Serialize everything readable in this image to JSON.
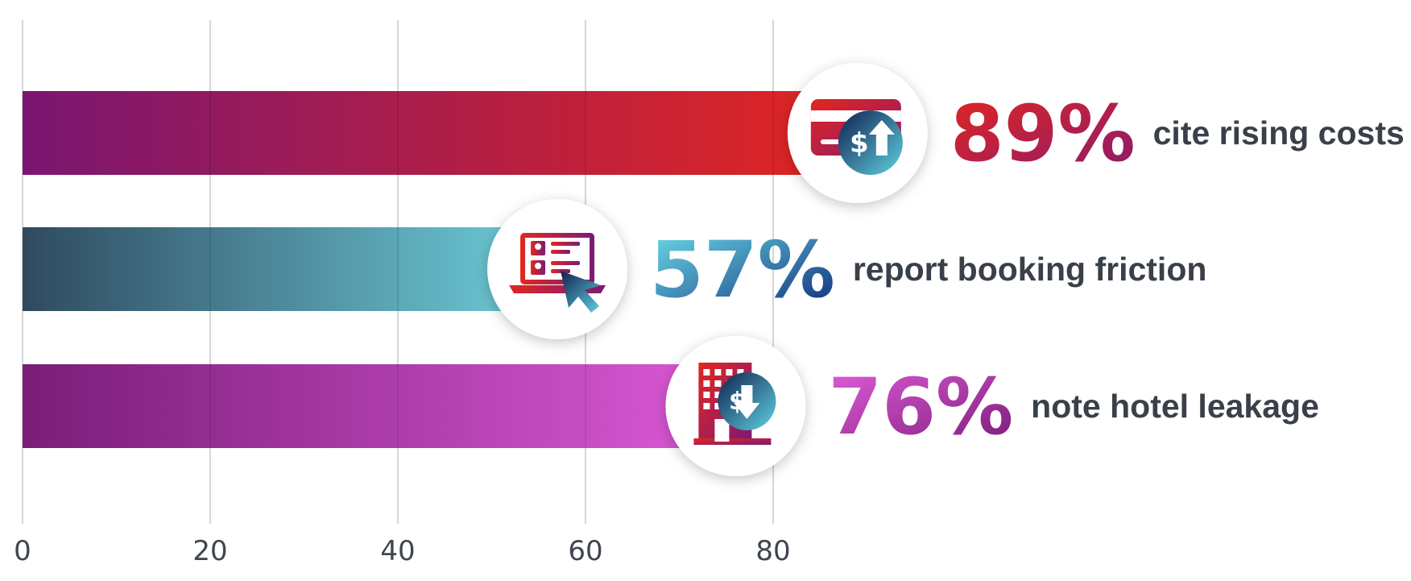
{
  "chart_data": {
    "type": "bar",
    "orientation": "horizontal",
    "xlim": [
      0,
      100
    ],
    "x_ticks": [
      "0",
      "20",
      "40",
      "60",
      "80"
    ],
    "grid": true,
    "categories": [
      "cite rising costs",
      "report booking friction",
      "note hotel leakage"
    ],
    "values": [
      89,
      57,
      76
    ],
    "value_labels": [
      "89%",
      "57%",
      "76%"
    ]
  },
  "bars": [
    {
      "value": 89,
      "label": "89%",
      "caption": "cite rising costs",
      "icon": "credit-card-price-up-icon",
      "gradient": [
        "#7a1672",
        "#e3261f"
      ],
      "label_gradient": [
        "#e3261f",
        "#8a1a6e"
      ]
    },
    {
      "value": 57,
      "label": "57%",
      "caption": "report booking friction",
      "icon": "laptop-booking-cursor-icon",
      "gradient": [
        "#2f4a60",
        "#6fd0dc"
      ],
      "label_gradient": [
        "#6ee0ec",
        "#0f2a78"
      ]
    },
    {
      "value": 76,
      "label": "76%",
      "caption": "note hotel leakage",
      "icon": "hotel-price-down-icon",
      "gradient": [
        "#7a1d78",
        "#dc5ad8"
      ],
      "label_gradient": [
        "#e15fdc",
        "#7a1a76"
      ]
    }
  ],
  "colors": {
    "grid": "#c9c9c9",
    "tick_text": "#3f4650",
    "caption_text": "#3a4049",
    "icon_circle": "#ffffff"
  }
}
